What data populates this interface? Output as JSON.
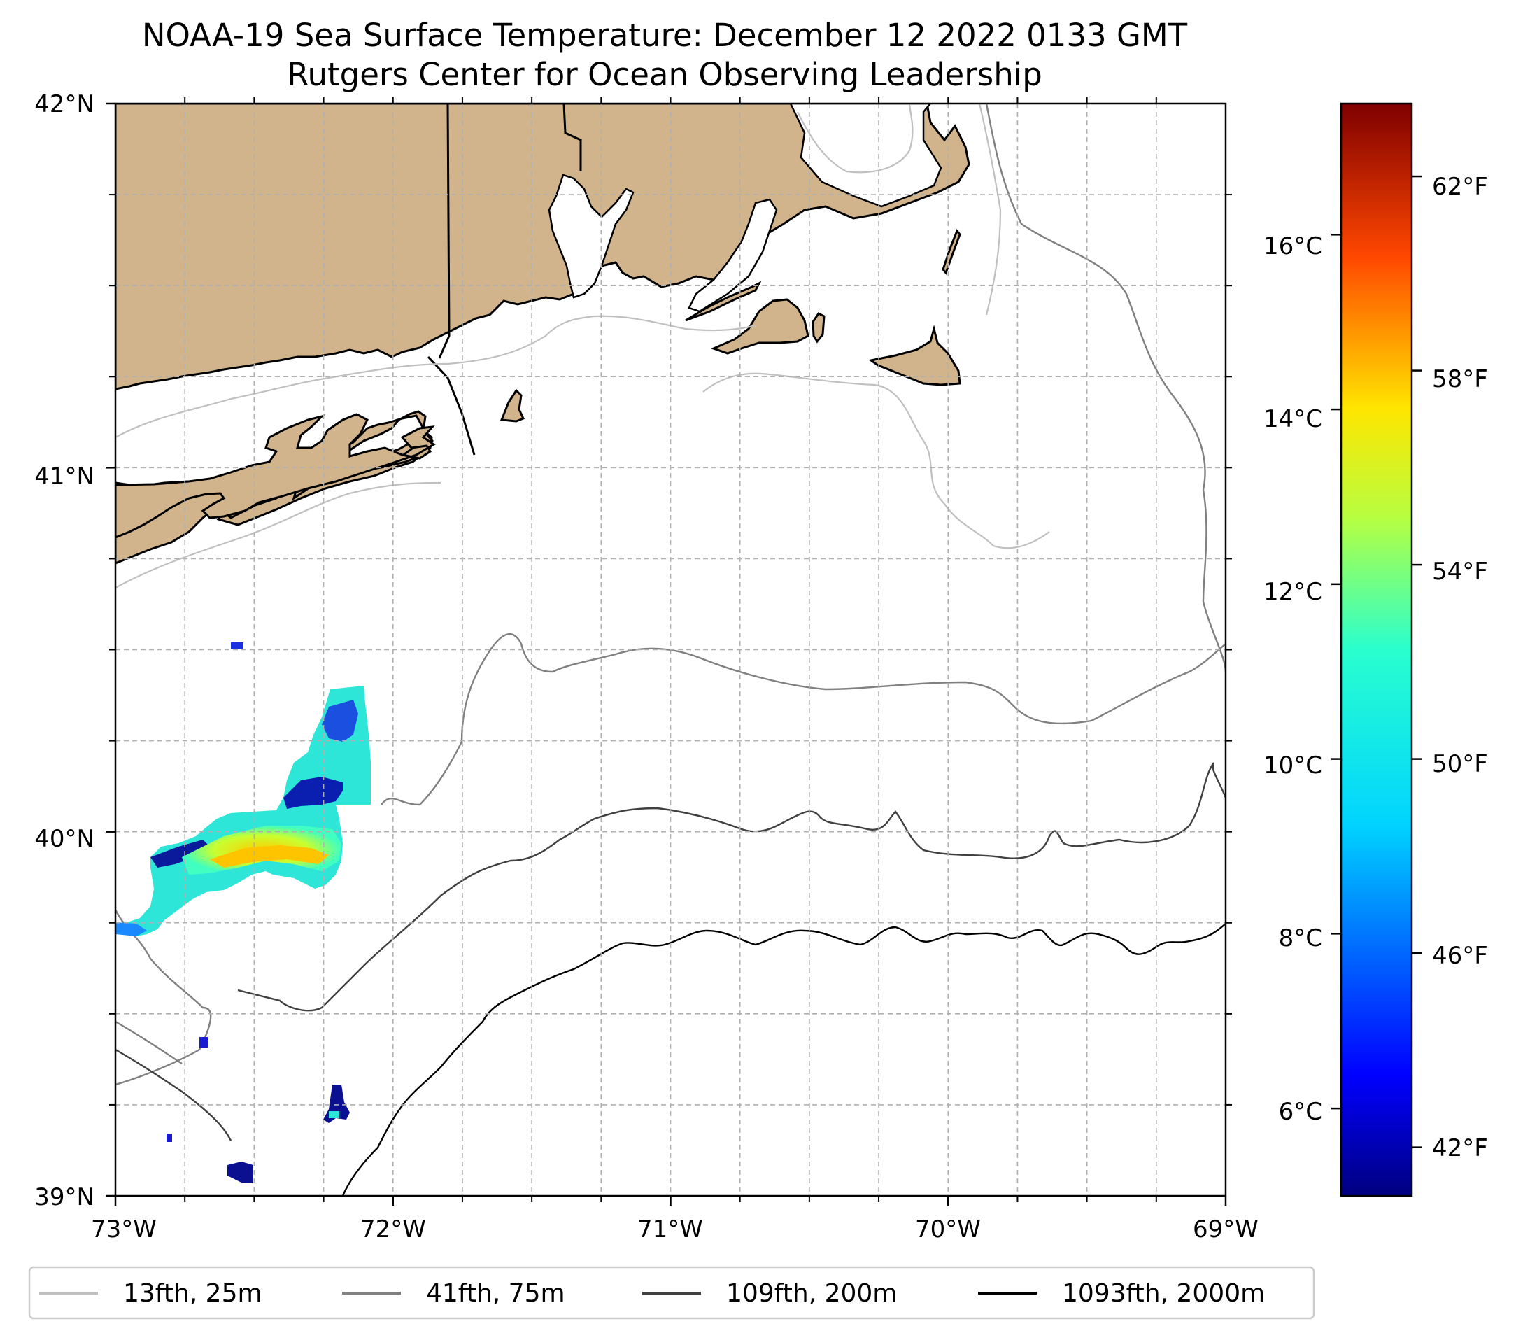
{
  "title": {
    "line1": "NOAA-19 Sea Surface Temperature: December 12 2022 0133 GMT",
    "line2": "Rutgers Center for Ocean Observing Leadership"
  },
  "axes": {
    "lon_range": [
      -73,
      -69
    ],
    "lat_range": [
      39,
      42
    ],
    "x_ticks": [
      {
        "lon": -73,
        "label": "73°W"
      },
      {
        "lon": -72,
        "label": "72°W"
      },
      {
        "lon": -71,
        "label": "71°W"
      },
      {
        "lon": -70,
        "label": "70°W"
      },
      {
        "lon": -69,
        "label": "69°W"
      }
    ],
    "y_ticks": [
      {
        "lat": 42,
        "label": "42°N"
      },
      {
        "lat": 41,
        "label": "41°N"
      },
      {
        "lat": 40,
        "label": "40°N"
      },
      {
        "lat": 39,
        "label": "39°N"
      }
    ],
    "minor_lon_step": 0.25,
    "minor_lat_step": 0.25
  },
  "colorbar": {
    "celsius_range": [
      5.0,
      17.5
    ],
    "celsius_ticks": [
      {
        "value": 6,
        "label": "6°C"
      },
      {
        "value": 8,
        "label": "8°C"
      },
      {
        "value": 10,
        "label": "10°C"
      },
      {
        "value": 12,
        "label": "12°C"
      },
      {
        "value": 14,
        "label": "14°C"
      },
      {
        "value": 16,
        "label": "16°C"
      }
    ],
    "fahrenheit_ticks": [
      {
        "value": 42,
        "label": "42°F"
      },
      {
        "value": 46,
        "label": "46°F"
      },
      {
        "value": 50,
        "label": "50°F"
      },
      {
        "value": 54,
        "label": "54°F"
      },
      {
        "value": 58,
        "label": "58°F"
      },
      {
        "value": 62,
        "label": "62°F"
      }
    ],
    "colormap": [
      "#00007f",
      "#0000ff",
      "#007fff",
      "#00ffff",
      "#7fff7f",
      "#ffff00",
      "#ff7f00",
      "#ff0000",
      "#7f0000"
    ]
  },
  "legend": {
    "items": [
      {
        "label": "13fth, 25m",
        "color": "#c0c0c0"
      },
      {
        "label": "41fth, 75m",
        "color": "#808080"
      },
      {
        "label": "109fth, 200m",
        "color": "#404040"
      },
      {
        "label": "1093fth, 2000m",
        "color": "#000000"
      }
    ]
  },
  "colors": {
    "land": "#d2b48c",
    "coastline": "#000000",
    "grid": "#b0b0b0"
  }
}
